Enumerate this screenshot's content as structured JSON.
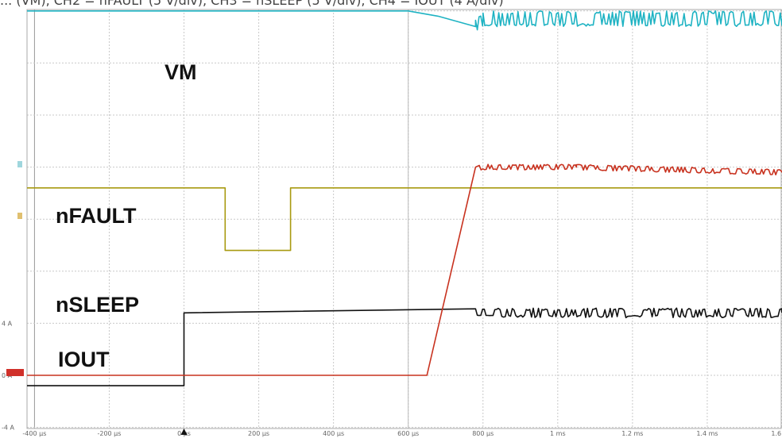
{
  "caption": "... (VM), CH2 = nFAULT (5 V/div), CH3 = nSLEEP (5 V/div), CH4 = IOUT (4 A/div)",
  "chart_data": {
    "type": "line",
    "title": "",
    "xlabel": "",
    "ylabel": "",
    "x_ticks": [
      "-400 µs",
      "-200 µs",
      "0 µs",
      "200 µs",
      "400 µs",
      "600 µs",
      "800 µs",
      "1 ms",
      "1.2 ms",
      "1.4 ms",
      "1.6 ms"
    ],
    "xlim_us": [
      -420,
      1600
    ],
    "y_ticks": [
      "4 A",
      "0 A",
      "-4 A"
    ],
    "grid": true,
    "series": [
      {
        "name": "VM",
        "color": "#1fb3c3",
        "x": [
          -420,
          600,
          680,
          780,
          800,
          1600
        ],
        "y": [
          7.0,
          7.0,
          6.9,
          6.7,
          6.85,
          6.85
        ],
        "ripple_from": 780
      },
      {
        "name": "nFAULT",
        "color": "#a89a10",
        "x": [
          -420,
          0,
          110,
          110,
          285,
          285,
          1600
        ],
        "y": [
          3.6,
          3.6,
          3.6,
          2.4,
          2.4,
          3.6,
          3.6
        ]
      },
      {
        "name": "nSLEEP",
        "color": "#111111",
        "x": [
          -420,
          0,
          0,
          1600
        ],
        "y": [
          -0.2,
          -0.2,
          1.2,
          1.2
        ],
        "ripple_from": 780
      },
      {
        "name": "IOUT",
        "color": "#c8321f",
        "x": [
          -420,
          650,
          780,
          1050,
          1600
        ],
        "y": [
          0.0,
          0.0,
          4.0,
          4.0,
          3.9
        ],
        "ripple_from": 790
      }
    ]
  }
}
